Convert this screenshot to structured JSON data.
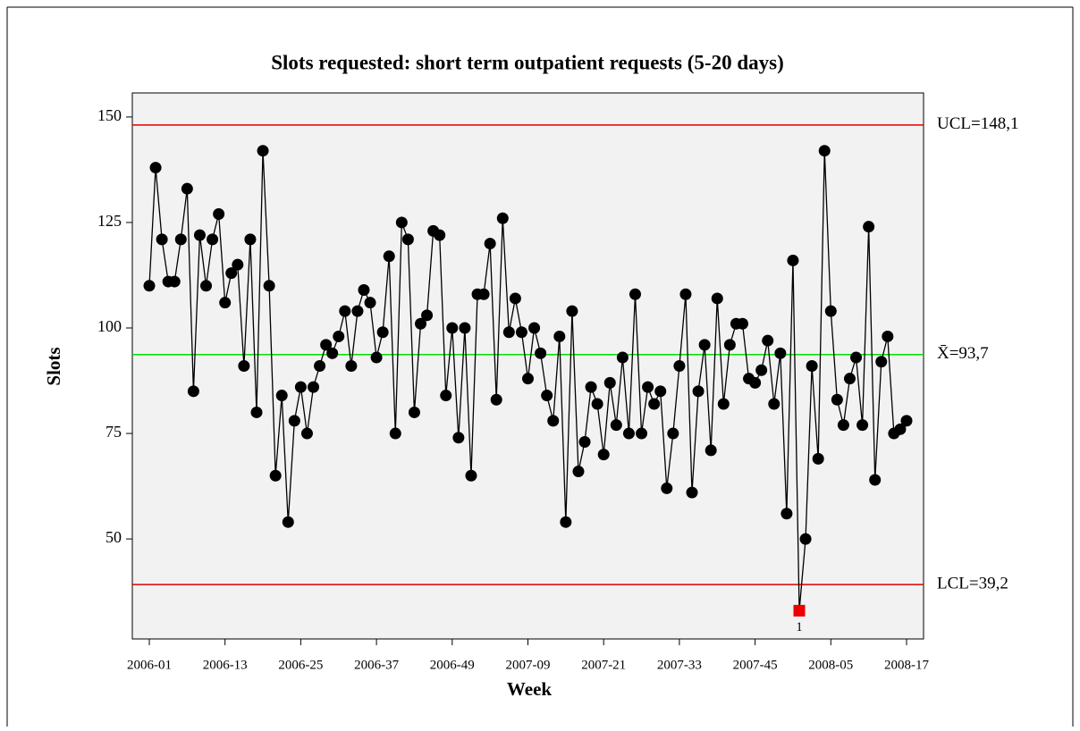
{
  "chart_data": {
    "type": "control",
    "title": "Slots requested: short term outpatient requests (5-20 days)",
    "x_label": "Week",
    "y_label": "Slots",
    "categories": [
      "2006-01",
      null,
      null,
      null,
      null,
      null,
      null,
      null,
      null,
      null,
      null,
      null,
      "2006-13",
      null,
      null,
      null,
      null,
      null,
      null,
      null,
      null,
      null,
      null,
      null,
      "2006-25",
      null,
      null,
      null,
      null,
      null,
      null,
      null,
      null,
      null,
      null,
      null,
      "2006-37",
      null,
      null,
      null,
      null,
      null,
      null,
      null,
      null,
      null,
      null,
      null,
      "2006-49",
      null,
      null,
      null,
      null,
      null,
      null,
      null,
      null,
      null,
      null,
      null,
      "2007-09",
      null,
      null,
      null,
      null,
      null,
      null,
      null,
      null,
      null,
      null,
      null,
      "2007-21",
      null,
      null,
      null,
      null,
      null,
      null,
      null,
      null,
      null,
      null,
      null,
      "2007-33",
      null,
      null,
      null,
      null,
      null,
      null,
      null,
      null,
      null,
      null,
      null,
      "2007-45",
      null,
      null,
      null,
      null,
      null,
      null,
      null,
      null,
      null,
      null,
      null,
      "2008-05",
      null,
      null,
      null,
      null,
      null,
      null,
      null,
      null,
      null,
      null,
      null,
      "2008-17"
    ],
    "series": [
      {
        "color": "#000000",
        "values": [
          110,
          138,
          121,
          111,
          111,
          121,
          133,
          85,
          122,
          110,
          121,
          127,
          106,
          113,
          115,
          91,
          121,
          80,
          142,
          110,
          65,
          84,
          54,
          78,
          86,
          75,
          86,
          91,
          96,
          94,
          98,
          104,
          91,
          104,
          109,
          106,
          93,
          99,
          117,
          75,
          125,
          121,
          80,
          101,
          103,
          123,
          122,
          84,
          100,
          74,
          100,
          65,
          108,
          108,
          120,
          83,
          126,
          99,
          107,
          99,
          88,
          100,
          94,
          84,
          78,
          98,
          54,
          104,
          66,
          73,
          86,
          82,
          70,
          87,
          77,
          93,
          75,
          108,
          75,
          86,
          82,
          85,
          62,
          75,
          91,
          108,
          61,
          85,
          96,
          71,
          107,
          82,
          96,
          101,
          101,
          88,
          87,
          90,
          97,
          82,
          94,
          56,
          116,
          33,
          50,
          91,
          69,
          142,
          104,
          83,
          77,
          88,
          93,
          77,
          124,
          64,
          92,
          98,
          75,
          76,
          78
        ]
      }
    ],
    "control_limits": [
      {
        "value": 148.1,
        "label": "UCL=148,1",
        "color": "#e00000"
      },
      {
        "value": 93.7,
        "label": "X̄=93,7",
        "color": "#00e000"
      },
      {
        "value": 39.2,
        "label": "LCL=39,2",
        "color": "#e00000"
      }
    ],
    "annotations": [
      {
        "point": 103,
        "text": "1",
        "color": "#ee0000"
      }
    ],
    "ylim": [
      26.3,
      155.7
    ],
    "yticks": [
      50,
      75,
      100,
      125,
      150
    ]
  }
}
